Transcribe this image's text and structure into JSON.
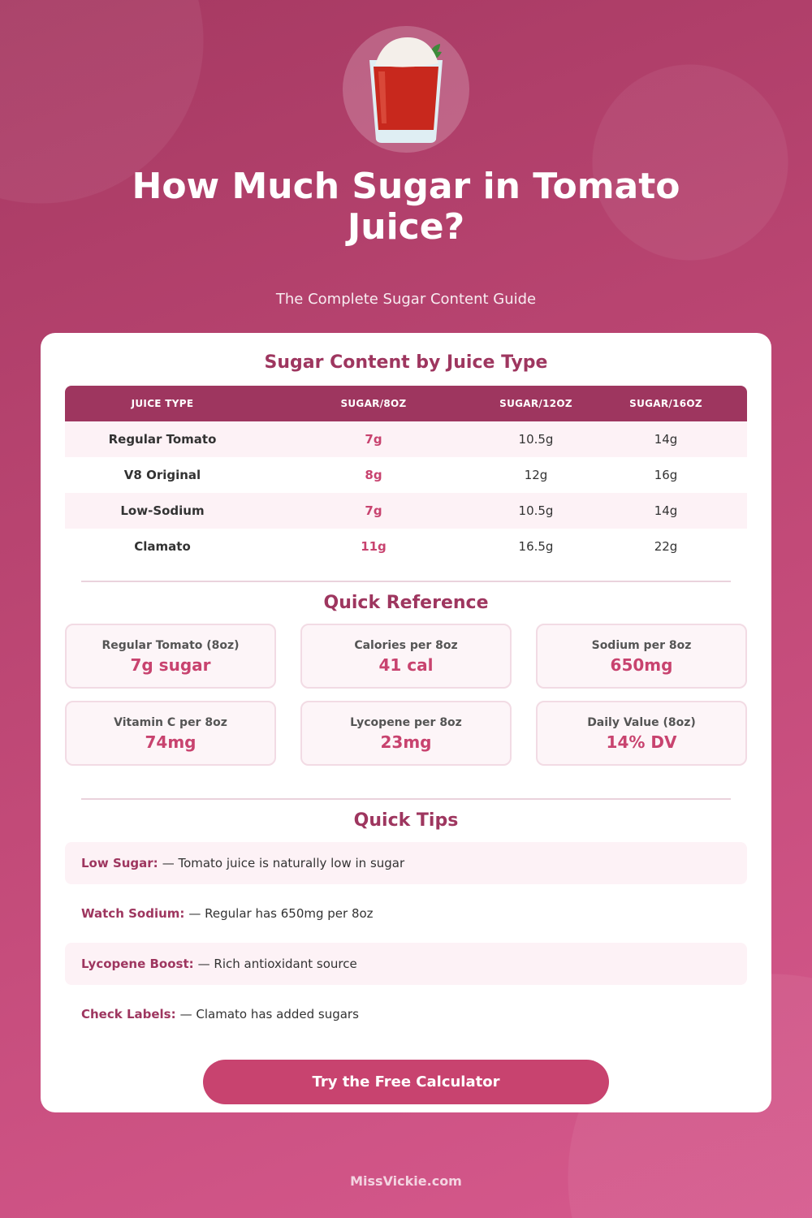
{
  "header": {
    "icon": "tomato-juice-glass-icon",
    "title": "How Much Sugar in Tomato Juice?",
    "subtitle": "The Complete Sugar Content Guide"
  },
  "table": {
    "title": "Sugar Content by Juice Type",
    "columns": [
      "JUICE TYPE",
      "SUGAR/8OZ",
      "SUGAR/12OZ",
      "SUGAR/16OZ"
    ],
    "rows": [
      [
        "Regular Tomato",
        "7g",
        "10.5g",
        "14g"
      ],
      [
        "V8 Original",
        "8g",
        "12g",
        "16g"
      ],
      [
        "Low-Sodium",
        "7g",
        "10.5g",
        "14g"
      ],
      [
        "Clamato",
        "11g",
        "16.5g",
        "22g"
      ]
    ]
  },
  "quick_reference": {
    "title": "Quick Reference",
    "items": [
      {
        "label": "Regular Tomato (8oz)",
        "value": "7g sugar"
      },
      {
        "label": "Calories per 8oz",
        "value": "41 cal"
      },
      {
        "label": "Sodium per 8oz",
        "value": "650mg"
      },
      {
        "label": "Vitamin C per 8oz",
        "value": "74mg"
      },
      {
        "label": "Lycopene per 8oz",
        "value": "23mg"
      },
      {
        "label": "Daily Value (8oz)",
        "value": "14% DV"
      }
    ]
  },
  "tips": {
    "title": "Quick Tips",
    "items": [
      {
        "label": "Low Sugar:",
        "text": "— Tomato juice is naturally low in sugar"
      },
      {
        "label": "Watch Sodium:",
        "text": "— Regular has 650mg per 8oz"
      },
      {
        "label": "Lycopene Boost:",
        "text": "— Rich antioxidant source"
      },
      {
        "label": "Check Labels:",
        "text": "— Clamato has added sugars"
      }
    ]
  },
  "cta": {
    "label": "Try the Free Calculator"
  },
  "footer": {
    "text": "MissVickie.com"
  },
  "colors": {
    "primary": "#9e365f",
    "accent": "#c8436f",
    "row_alt": "#fdf2f6"
  }
}
